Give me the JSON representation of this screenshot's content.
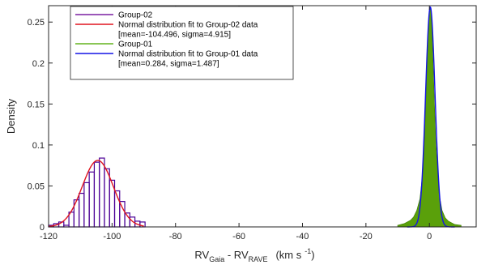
{
  "chart_data": {
    "type": "histogram",
    "xlabel": {
      "main": "RV",
      "sub1": "Gaia",
      "mid": " - RV",
      "sub2": "RAVE",
      "unit": "(km s",
      "sup": "-1",
      "close": ")"
    },
    "ylabel": "Density",
    "xlim": [
      -120,
      15
    ],
    "ylim": [
      0,
      0.27
    ],
    "xticks": [
      -120,
      -100,
      -80,
      -60,
      -40,
      -20,
      0
    ],
    "yticks": [
      0,
      0.05,
      0.1,
      0.15,
      0.2,
      0.25
    ],
    "ytick_labels": [
      "0",
      "0.05",
      "0.1",
      "0.15",
      "0.2",
      "0.25"
    ],
    "grid": false,
    "legend_position": "top-left",
    "legend": [
      {
        "text": "Group-02",
        "color": "#7a1fa2"
      },
      {
        "text": "Normal distribution fit to Group-02 data",
        "text2": "[mean=-104.496, sigma=4.915]",
        "color": "#e0141e"
      },
      {
        "text": "Group-01",
        "color": "#64b41e"
      },
      {
        "text": "Normal distribution fit to Group-01 data",
        "text2": "[mean=0.284, sigma=1.487]",
        "color": "#1414e6"
      }
    ],
    "series": [
      {
        "name": "Group-02",
        "kind": "histogram",
        "color": "#4b0096",
        "bin_width": 1.6,
        "bins": [
          {
            "x": -120.0,
            "y": 0.002
          },
          {
            "x": -118.4,
            "y": 0.004
          },
          {
            "x": -116.8,
            "y": 0.006
          },
          {
            "x": -115.2,
            "y": 0.002
          },
          {
            "x": -113.6,
            "y": 0.018
          },
          {
            "x": -112.0,
            "y": 0.033
          },
          {
            "x": -110.4,
            "y": 0.041
          },
          {
            "x": -108.8,
            "y": 0.054
          },
          {
            "x": -107.2,
            "y": 0.067
          },
          {
            "x": -105.6,
            "y": 0.079
          },
          {
            "x": -104.0,
            "y": 0.084
          },
          {
            "x": -102.4,
            "y": 0.071
          },
          {
            "x": -100.8,
            "y": 0.057
          },
          {
            "x": -99.2,
            "y": 0.044
          },
          {
            "x": -97.6,
            "y": 0.031
          },
          {
            "x": -96.0,
            "y": 0.017
          },
          {
            "x": -94.4,
            "y": 0.012
          },
          {
            "x": -92.8,
            "y": 0.007
          },
          {
            "x": -91.2,
            "y": 0.006
          }
        ]
      },
      {
        "name": "Normal distribution fit to Group-02 data",
        "kind": "normal",
        "color": "#e0141e",
        "mean": -104.496,
        "sigma": 4.915,
        "range": [
          -120,
          -90
        ]
      },
      {
        "name": "Group-01",
        "kind": "area",
        "color": "#5aa00a",
        "x": [
          -10,
          -8,
          -6,
          -5,
          -4,
          -3,
          -2,
          -1.5,
          -1,
          -0.5,
          0,
          0.3,
          0.6,
          1,
          1.5,
          2,
          3,
          4,
          5,
          6,
          8,
          10
        ],
        "y": [
          0.002,
          0.004,
          0.008,
          0.012,
          0.02,
          0.034,
          0.07,
          0.11,
          0.17,
          0.225,
          0.262,
          0.268,
          0.258,
          0.22,
          0.16,
          0.105,
          0.042,
          0.02,
          0.011,
          0.007,
          0.003,
          0.002
        ]
      },
      {
        "name": "Normal distribution fit to Group-01 data",
        "kind": "normal",
        "color": "#1414e6",
        "mean": 0.284,
        "sigma": 1.487,
        "range": [
          -7,
          8
        ]
      }
    ]
  }
}
